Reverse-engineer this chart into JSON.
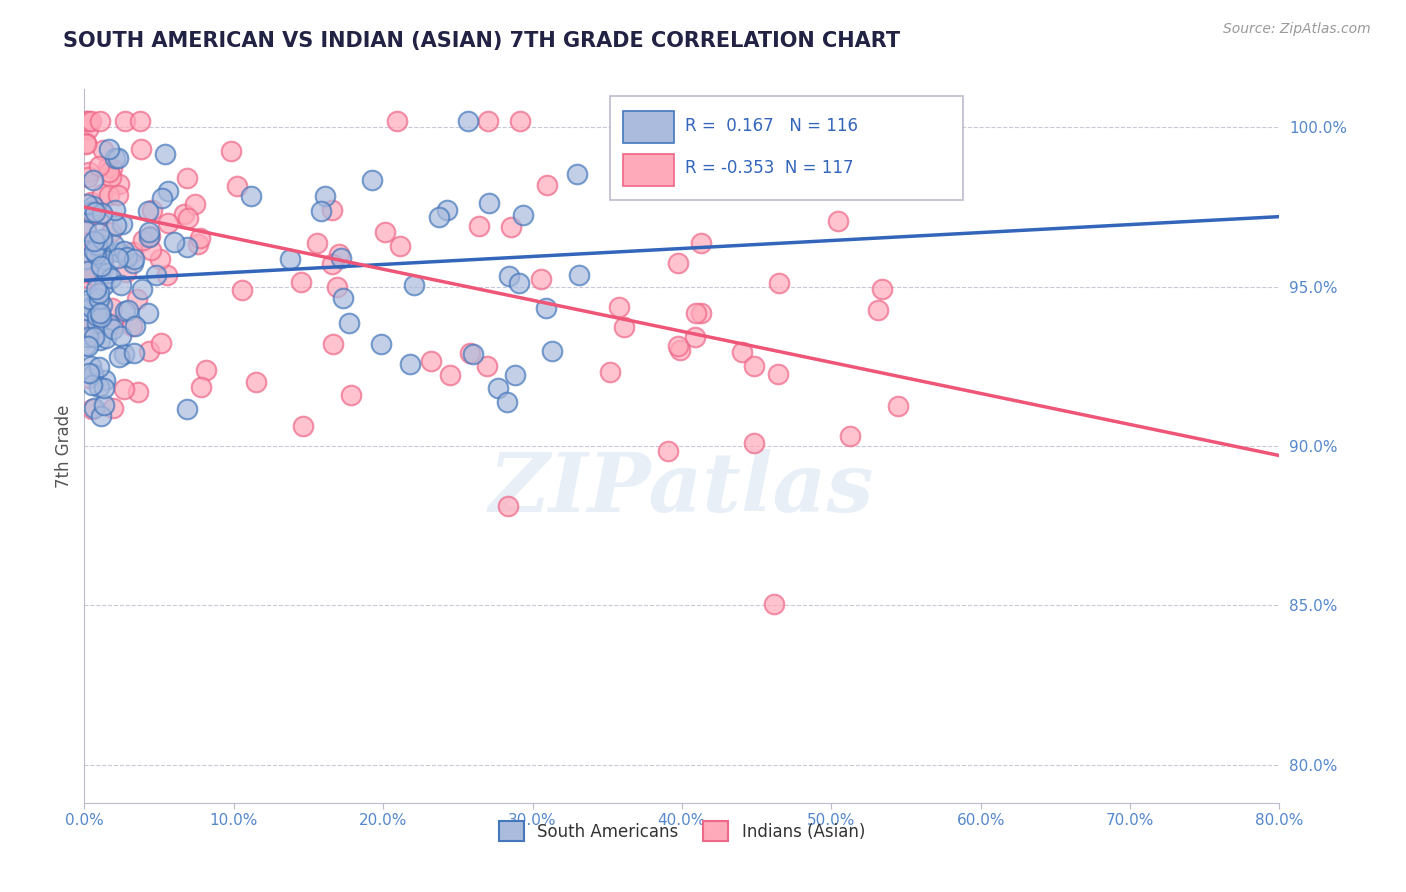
{
  "title": "SOUTH AMERICAN VS INDIAN (ASIAN) 7TH GRADE CORRELATION CHART",
  "source_text": "Source: ZipAtlas.com",
  "ylabel": "7th Grade",
  "xmin": 0.0,
  "xmax": 0.8,
  "ymin": 0.788,
  "ymax": 1.012,
  "yticks": [
    0.8,
    0.85,
    0.9,
    0.95,
    1.0
  ],
  "ytick_labels": [
    "80.0%",
    "85.0%",
    "90.0%",
    "95.0%",
    "100.0%"
  ],
  "xticks": [
    0.0,
    0.1,
    0.2,
    0.3,
    0.4,
    0.5,
    0.6,
    0.7,
    0.8
  ],
  "xtick_labels": [
    "0.0%",
    "10.0%",
    "20.0%",
    "30.0%",
    "40.0%",
    "50.0%",
    "60.0%",
    "70.0%",
    "80.0%"
  ],
  "blue_R": 0.167,
  "blue_N": 116,
  "pink_R": -0.353,
  "pink_N": 117,
  "blue_color": "#AABBDD",
  "pink_color": "#FFAABB",
  "blue_edge_color": "#4477BB",
  "pink_edge_color": "#EE6688",
  "blue_line_color": "#3366BB",
  "pink_line_color": "#EE5577",
  "watermark_text": "ZIPatlas",
  "legend_label_blue": "South Americans",
  "legend_label_pink": "Indians (Asian)",
  "blue_trend_x0": 0.0,
  "blue_trend_x1": 0.8,
  "blue_trend_y0": 0.952,
  "blue_trend_y1": 0.972,
  "pink_trend_x0": 0.0,
  "pink_trend_x1": 0.8,
  "pink_trend_y0": 0.975,
  "pink_trend_y1": 0.897
}
